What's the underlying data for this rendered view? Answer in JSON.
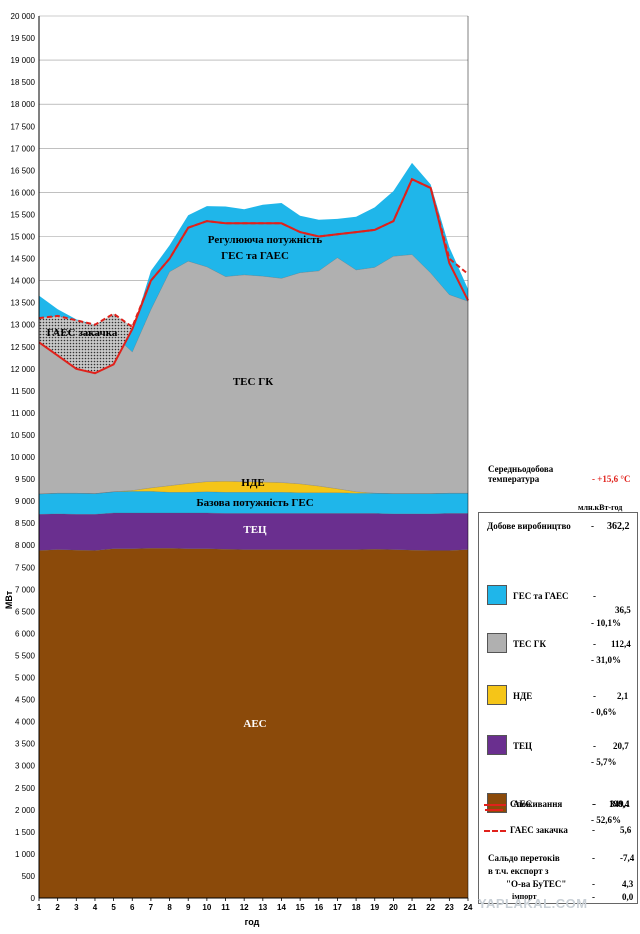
{
  "chart_data": {
    "type": "area",
    "stacked": true,
    "xlabel": "год",
    "ylabel": "МВт",
    "ylim": [
      0,
      20000
    ],
    "ytick_step": 500,
    "x": [
      1,
      2,
      3,
      4,
      5,
      6,
      7,
      8,
      9,
      10,
      11,
      12,
      13,
      14,
      15,
      16,
      17,
      18,
      19,
      20,
      21,
      22,
      23,
      24
    ],
    "grid": "horizontal",
    "series": [
      {
        "name": "АЕС",
        "color": "#8b4a0a",
        "values": [
          7880,
          7900,
          7890,
          7880,
          7920,
          7920,
          7930,
          7930,
          7920,
          7920,
          7910,
          7900,
          7900,
          7900,
          7900,
          7900,
          7900,
          7900,
          7910,
          7900,
          7890,
          7880,
          7880,
          7900
        ]
      },
      {
        "name": "ТЕЦ",
        "color": "#6a2f8f",
        "values": [
          820,
          810,
          810,
          820,
          810,
          810,
          800,
          800,
          810,
          810,
          810,
          820,
          820,
          820,
          820,
          820,
          820,
          820,
          810,
          810,
          820,
          830,
          840,
          820
        ]
      },
      {
        "name": "Базова потужність ГЕС",
        "color": "#1fb6ea",
        "values": [
          460,
          470,
          480,
          470,
          480,
          490,
          490,
          470,
          470,
          480,
          480,
          480,
          480,
          480,
          470,
          470,
          470,
          460,
          460,
          460,
          460,
          460,
          460,
          460
        ]
      },
      {
        "name": "НДЕ",
        "color": "#f5c518",
        "values": [
          0,
          0,
          0,
          0,
          0,
          20,
          80,
          150,
          200,
          230,
          250,
          240,
          230,
          220,
          200,
          150,
          90,
          30,
          0,
          0,
          0,
          0,
          0,
          0
        ]
      },
      {
        "name": "ТЕС ГК",
        "color": "#b0b0b0",
        "values": [
          3900,
          3580,
          3360,
          3340,
          3570,
          3140,
          4040,
          4850,
          5040,
          4870,
          4640,
          4690,
          4670,
          4630,
          4790,
          4880,
          5240,
          5030,
          5120,
          5380,
          5420,
          5000,
          4500,
          4350
        ]
      },
      {
        "name": "ГЕС та ГАЕС",
        "color": "#1fb6ea",
        "values": [
          600,
          590,
          580,
          490,
          420,
          480,
          880,
          600,
          1040,
          1380,
          1590,
          1490,
          1620,
          1710,
          1290,
          1160,
          880,
          1210,
          1360,
          1480,
          2080,
          2010,
          1080,
          280
        ]
      }
    ],
    "lines": [
      {
        "name": "Споживання",
        "color": "#e0211b",
        "style": "solid",
        "values": [
          12600,
          12300,
          12000,
          11900,
          12100,
          12900,
          14000,
          14500,
          15200,
          15350,
          15300,
          15300,
          15300,
          15300,
          15100,
          15000,
          15050,
          15100,
          15150,
          15350,
          16300,
          16100,
          14400,
          13550
        ]
      },
      {
        "name": "ГАЕС закачка",
        "color": "#e0211b",
        "style": "dashed",
        "values": [
          13150,
          13200,
          13100,
          13000,
          13250,
          12950,
          14000,
          14500,
          15200,
          15350,
          15300,
          15300,
          15300,
          15300,
          15100,
          15000,
          15050,
          15100,
          15150,
          15350,
          16300,
          16100,
          14500,
          14150
        ]
      }
    ],
    "area_labels": {
      "regulating": [
        "Регулююча потужність",
        "ГЕС та ГАЕС"
      ],
      "pump": "ГАЕС закачка",
      "tes": "ТЕС ГК",
      "nde": "НДЕ",
      "base_hydro": "Базова потужність ГЕС",
      "chp": "ТЕЦ",
      "npp": "АЕС"
    }
  },
  "temperature": {
    "label_line1": "Середньодобова",
    "label_line2": "температура",
    "value": "- +15,6 °С",
    "color": "#e0211b"
  },
  "units": "млн.кВт-год",
  "legend": {
    "total": {
      "label": "Добове виробництво",
      "dash": "-",
      "value": "362,2"
    },
    "items": [
      {
        "key": "hydro",
        "color": "#1fb6ea",
        "label": "ГЕС та ГАЕС",
        "value": "36,5",
        "percent": "- 10,1%"
      },
      {
        "key": "tes",
        "color": "#b0b0b0",
        "label": "ТЕС ГК",
        "value": "112,4",
        "percent": "- 31,0%"
      },
      {
        "key": "nde",
        "color": "#f5c518",
        "label": "НДЕ",
        "value": "2,1",
        "percent": "- 0,6%"
      },
      {
        "key": "chp",
        "color": "#6a2f8f",
        "label": "ТЕЦ",
        "value": "20,7",
        "percent": "- 5,7%"
      },
      {
        "key": "npp",
        "color": "#8b4a0a",
        "label": "АЕС",
        "value": "190,4",
        "percent": "- 52,6%"
      }
    ],
    "consumption": {
      "label": "Споживання",
      "dash": "-",
      "value": "349,1"
    },
    "pump": {
      "label": "ГАЕС закачка",
      "dash": "-",
      "value": "5,6"
    },
    "saldo": {
      "line1": "Сальдо перетоків",
      "line2": "в т.ч. експорт з",
      "line3": "\"О-ва БуТЕС\"",
      "line4": "імпорт",
      "dash1": "-",
      "value1": "-7,4",
      "dash2": "-",
      "value2": "4,3",
      "dash3": "-",
      "value3": "0,0"
    }
  },
  "watermark": "YAPLAKAL.COM"
}
